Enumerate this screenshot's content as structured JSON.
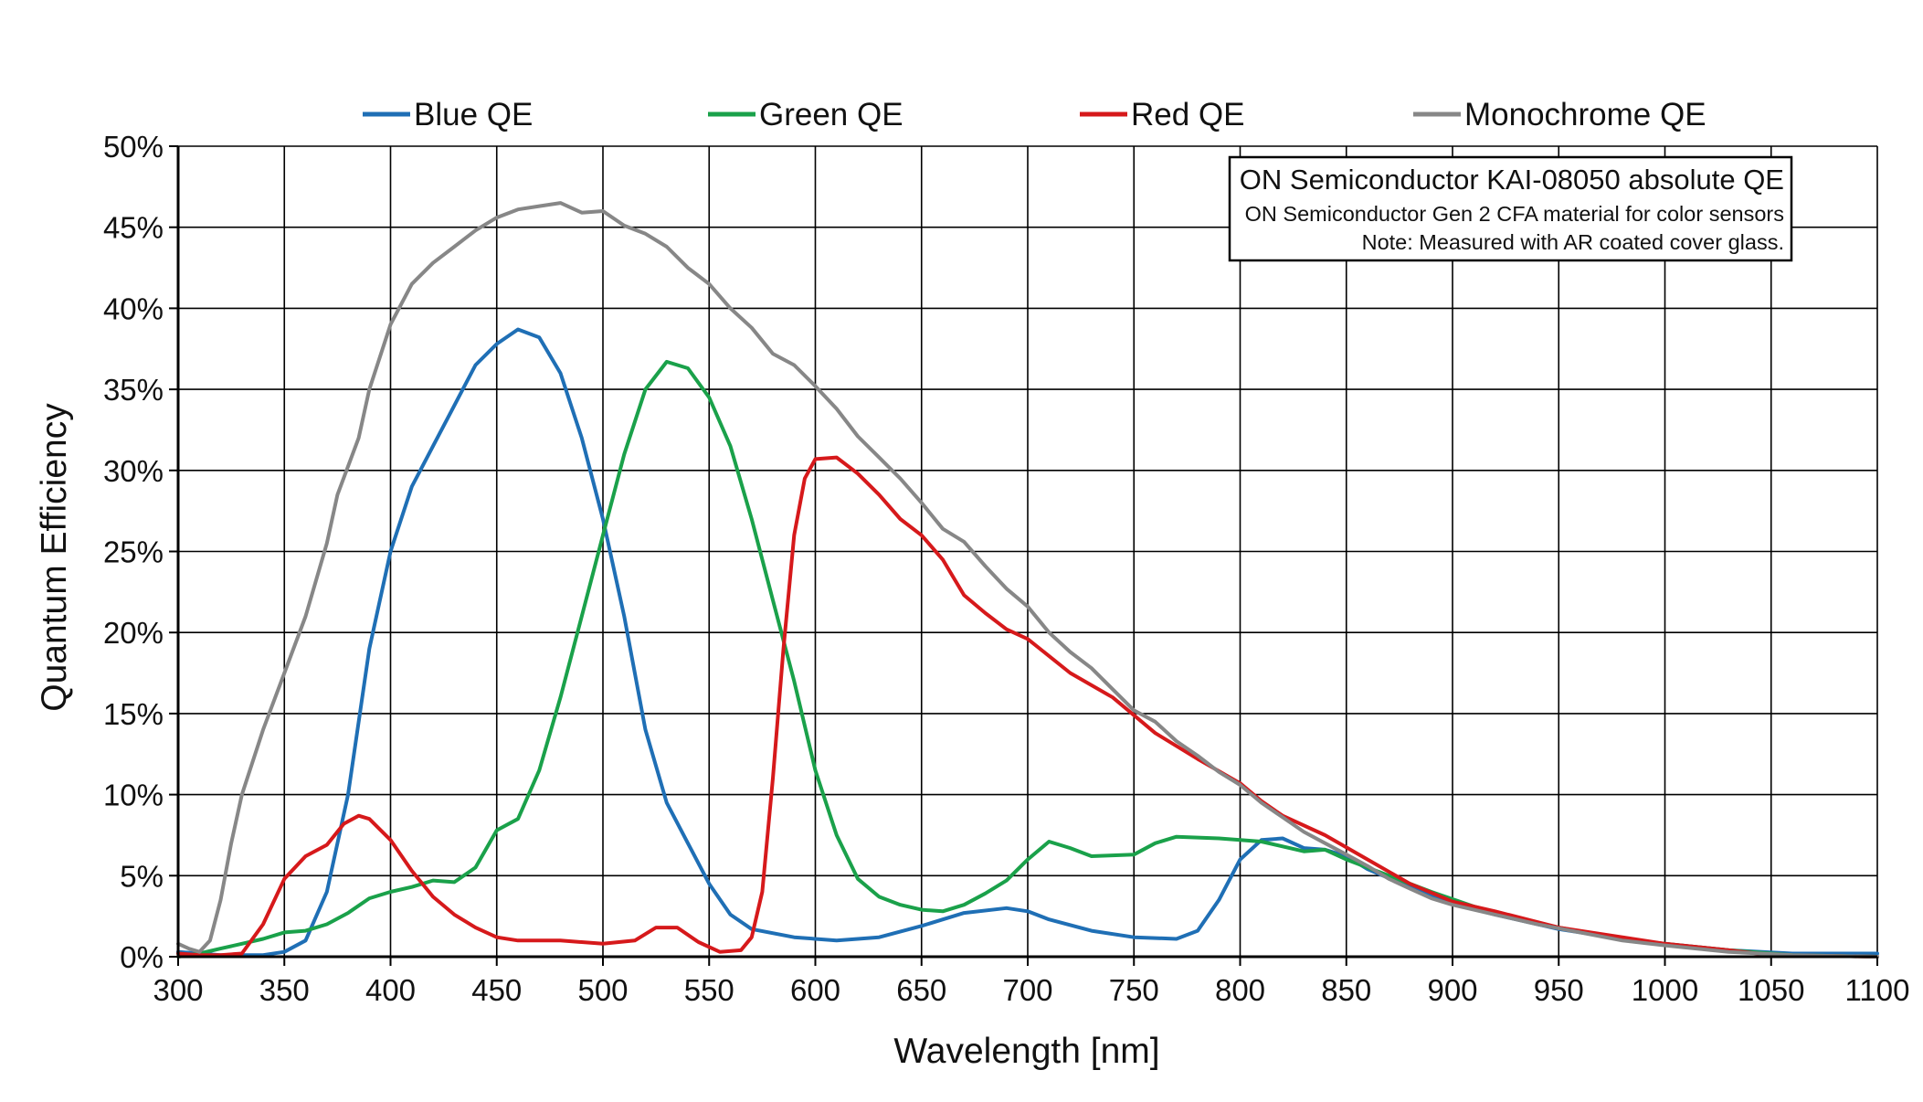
{
  "chart_data": {
    "type": "line",
    "title": "",
    "xlabel": "Wavelength [nm]",
    "ylabel": "Quantum Efficiency",
    "xlim": [
      300,
      1100
    ],
    "ylim": [
      0,
      50
    ],
    "x_ticks": [
      300,
      350,
      400,
      450,
      500,
      550,
      600,
      650,
      700,
      750,
      800,
      850,
      900,
      950,
      1000,
      1050,
      1100
    ],
    "y_ticks": [
      0,
      5,
      10,
      15,
      20,
      25,
      30,
      35,
      40,
      45,
      50
    ],
    "x_tick_labels": [
      "300",
      "350",
      "400",
      "450",
      "500",
      "550",
      "600",
      "650",
      "700",
      "750",
      "800",
      "850",
      "900",
      "950",
      "1000",
      "1050",
      "1100"
    ],
    "y_tick_labels": [
      "0%",
      "5%",
      "10%",
      "15%",
      "20%",
      "25%",
      "30%",
      "35%",
      "40%",
      "45%",
      "50%"
    ],
    "grid": true,
    "legend_position": "top",
    "annotation": {
      "title": "ON Semiconductor KAI-08050 absolute QE",
      "line1": "ON Semiconductor Gen 2 CFA material for color sensors",
      "line2": "Note: Measured with AR coated cover glass."
    },
    "series": [
      {
        "name": "Blue QE",
        "color": "#1f6fb5",
        "points": [
          [
            300,
            0.3
          ],
          [
            320,
            0.1
          ],
          [
            340,
            0.1
          ],
          [
            350,
            0.3
          ],
          [
            360,
            1
          ],
          [
            370,
            4
          ],
          [
            380,
            10
          ],
          [
            390,
            19
          ],
          [
            400,
            25
          ],
          [
            410,
            29
          ],
          [
            420,
            31.5
          ],
          [
            430,
            34
          ],
          [
            440,
            36.5
          ],
          [
            450,
            37.8
          ],
          [
            460,
            38.7
          ],
          [
            470,
            38.2
          ],
          [
            480,
            36
          ],
          [
            490,
            32
          ],
          [
            500,
            27
          ],
          [
            510,
            21
          ],
          [
            520,
            14
          ],
          [
            530,
            9.5
          ],
          [
            540,
            7
          ],
          [
            550,
            4.5
          ],
          [
            560,
            2.6
          ],
          [
            570,
            1.7
          ],
          [
            590,
            1.2
          ],
          [
            610,
            1
          ],
          [
            630,
            1.2
          ],
          [
            650,
            1.9
          ],
          [
            670,
            2.7
          ],
          [
            690,
            3
          ],
          [
            700,
            2.8
          ],
          [
            710,
            2.3
          ],
          [
            730,
            1.6
          ],
          [
            750,
            1.2
          ],
          [
            770,
            1.1
          ],
          [
            780,
            1.6
          ],
          [
            790,
            3.5
          ],
          [
            800,
            6
          ],
          [
            810,
            7.2
          ],
          [
            820,
            7.3
          ],
          [
            830,
            6.7
          ],
          [
            840,
            6.6
          ],
          [
            850,
            6.2
          ],
          [
            860,
            5.4
          ],
          [
            880,
            4.3
          ],
          [
            900,
            3.3
          ],
          [
            920,
            2.6
          ],
          [
            950,
            1.7
          ],
          [
            980,
            1.1
          ],
          [
            1000,
            0.8
          ],
          [
            1030,
            0.4
          ],
          [
            1060,
            0.2
          ],
          [
            1100,
            0.2
          ]
        ]
      },
      {
        "name": "Green QE",
        "color": "#1aa14a",
        "points": [
          [
            300,
            0
          ],
          [
            310,
            0.2
          ],
          [
            320,
            0.5
          ],
          [
            330,
            0.8
          ],
          [
            340,
            1.1
          ],
          [
            350,
            1.5
          ],
          [
            360,
            1.6
          ],
          [
            370,
            2
          ],
          [
            380,
            2.7
          ],
          [
            390,
            3.6
          ],
          [
            400,
            4
          ],
          [
            410,
            4.3
          ],
          [
            420,
            4.7
          ],
          [
            430,
            4.6
          ],
          [
            440,
            5.5
          ],
          [
            450,
            7.8
          ],
          [
            460,
            8.5
          ],
          [
            470,
            11.5
          ],
          [
            480,
            16
          ],
          [
            490,
            21
          ],
          [
            500,
            26
          ],
          [
            510,
            31
          ],
          [
            520,
            35
          ],
          [
            530,
            36.7
          ],
          [
            540,
            36.3
          ],
          [
            550,
            34.5
          ],
          [
            560,
            31.5
          ],
          [
            570,
            27
          ],
          [
            580,
            22
          ],
          [
            590,
            17
          ],
          [
            600,
            11.5
          ],
          [
            610,
            7.5
          ],
          [
            620,
            4.8
          ],
          [
            630,
            3.7
          ],
          [
            640,
            3.2
          ],
          [
            650,
            2.9
          ],
          [
            660,
            2.8
          ],
          [
            670,
            3.2
          ],
          [
            680,
            3.9
          ],
          [
            690,
            4.7
          ],
          [
            700,
            6
          ],
          [
            710,
            7.1
          ],
          [
            720,
            6.7
          ],
          [
            730,
            6.2
          ],
          [
            750,
            6.3
          ],
          [
            760,
            7
          ],
          [
            770,
            7.4
          ],
          [
            790,
            7.3
          ],
          [
            810,
            7.1
          ],
          [
            830,
            6.5
          ],
          [
            840,
            6.6
          ],
          [
            850,
            6
          ],
          [
            870,
            5
          ],
          [
            890,
            4
          ],
          [
            910,
            3.1
          ],
          [
            930,
            2.4
          ],
          [
            950,
            1.8
          ],
          [
            980,
            1.1
          ],
          [
            1000,
            0.8
          ],
          [
            1030,
            0.4
          ],
          [
            1060,
            0.1
          ],
          [
            1100,
            0
          ]
        ]
      },
      {
        "name": "Red QE",
        "color": "#d6191b",
        "points": [
          [
            300,
            0.2
          ],
          [
            310,
            0.1
          ],
          [
            320,
            0.1
          ],
          [
            330,
            0.2
          ],
          [
            340,
            2
          ],
          [
            350,
            4.8
          ],
          [
            360,
            6.2
          ],
          [
            370,
            6.9
          ],
          [
            378,
            8.2
          ],
          [
            385,
            8.7
          ],
          [
            390,
            8.5
          ],
          [
            400,
            7.2
          ],
          [
            410,
            5.3
          ],
          [
            420,
            3.7
          ],
          [
            430,
            2.6
          ],
          [
            440,
            1.8
          ],
          [
            450,
            1.2
          ],
          [
            460,
            1
          ],
          [
            480,
            1
          ],
          [
            500,
            0.8
          ],
          [
            515,
            1
          ],
          [
            525,
            1.8
          ],
          [
            535,
            1.8
          ],
          [
            545,
            0.9
          ],
          [
            555,
            0.3
          ],
          [
            565,
            0.4
          ],
          [
            570,
            1.2
          ],
          [
            575,
            4
          ],
          [
            580,
            11
          ],
          [
            585,
            19
          ],
          [
            590,
            26
          ],
          [
            595,
            29.5
          ],
          [
            600,
            30.7
          ],
          [
            610,
            30.8
          ],
          [
            620,
            29.8
          ],
          [
            630,
            28.5
          ],
          [
            640,
            27
          ],
          [
            650,
            26
          ],
          [
            660,
            24.5
          ],
          [
            670,
            22.3
          ],
          [
            680,
            21.2
          ],
          [
            690,
            20.2
          ],
          [
            700,
            19.6
          ],
          [
            720,
            17.5
          ],
          [
            740,
            16
          ],
          [
            760,
            13.8
          ],
          [
            780,
            12.2
          ],
          [
            800,
            10.7
          ],
          [
            810,
            9.6
          ],
          [
            820,
            8.7
          ],
          [
            840,
            7.5
          ],
          [
            860,
            6
          ],
          [
            880,
            4.5
          ],
          [
            900,
            3.4
          ],
          [
            920,
            2.8
          ],
          [
            950,
            1.8
          ],
          [
            980,
            1.2
          ],
          [
            1000,
            0.8
          ],
          [
            1030,
            0.4
          ],
          [
            1050,
            0.1
          ],
          [
            1100,
            0
          ]
        ]
      },
      {
        "name": "Monochrome QE",
        "color": "#878787",
        "points": [
          [
            300,
            0.8
          ],
          [
            305,
            0.5
          ],
          [
            310,
            0.3
          ],
          [
            315,
            1
          ],
          [
            320,
            3.5
          ],
          [
            325,
            7
          ],
          [
            330,
            10
          ],
          [
            340,
            14
          ],
          [
            350,
            17.5
          ],
          [
            360,
            21
          ],
          [
            370,
            25.5
          ],
          [
            375,
            28.5
          ],
          [
            385,
            32
          ],
          [
            390,
            35
          ],
          [
            400,
            39
          ],
          [
            410,
            41.5
          ],
          [
            420,
            42.8
          ],
          [
            430,
            43.8
          ],
          [
            440,
            44.8
          ],
          [
            450,
            45.6
          ],
          [
            460,
            46.1
          ],
          [
            470,
            46.3
          ],
          [
            480,
            46.5
          ],
          [
            490,
            45.9
          ],
          [
            500,
            46
          ],
          [
            510,
            45.1
          ],
          [
            520,
            44.6
          ],
          [
            530,
            43.8
          ],
          [
            540,
            42.5
          ],
          [
            550,
            41.5
          ],
          [
            560,
            40
          ],
          [
            570,
            38.8
          ],
          [
            580,
            37.2
          ],
          [
            590,
            36.5
          ],
          [
            600,
            35.2
          ],
          [
            610,
            33.8
          ],
          [
            620,
            32.1
          ],
          [
            630,
            30.8
          ],
          [
            640,
            29.5
          ],
          [
            650,
            28
          ],
          [
            660,
            26.4
          ],
          [
            670,
            25.6
          ],
          [
            680,
            24.1
          ],
          [
            690,
            22.7
          ],
          [
            700,
            21.6
          ],
          [
            710,
            20
          ],
          [
            720,
            18.8
          ],
          [
            730,
            17.8
          ],
          [
            740,
            16.5
          ],
          [
            750,
            15.2
          ],
          [
            760,
            14.5
          ],
          [
            770,
            13.3
          ],
          [
            780,
            12.4
          ],
          [
            790,
            11.4
          ],
          [
            800,
            10.6
          ],
          [
            810,
            9.5
          ],
          [
            820,
            8.6
          ],
          [
            830,
            7.7
          ],
          [
            840,
            7
          ],
          [
            850,
            6.3
          ],
          [
            860,
            5.6
          ],
          [
            870,
            4.8
          ],
          [
            880,
            4.2
          ],
          [
            890,
            3.6
          ],
          [
            900,
            3.2
          ],
          [
            920,
            2.6
          ],
          [
            940,
            2
          ],
          [
            960,
            1.5
          ],
          [
            980,
            1
          ],
          [
            1000,
            0.7
          ],
          [
            1030,
            0.3
          ],
          [
            1060,
            0.1
          ],
          [
            1100,
            0
          ]
        ]
      }
    ]
  }
}
